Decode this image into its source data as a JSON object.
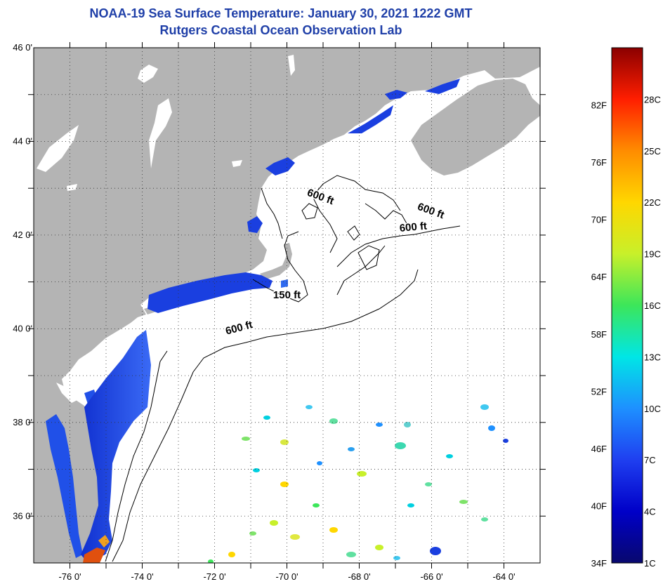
{
  "title": {
    "line1": "NOAA-19 Sea Surface Temperature:  January 30, 2021 1222 GMT",
    "line2": "Rutgers Coastal Ocean Observation Lab"
  },
  "map": {
    "lon_range": [
      -77,
      -63
    ],
    "lat_range": [
      35,
      46
    ],
    "lon_ticks": [
      {
        "value": -76,
        "label": "-76 0'"
      },
      {
        "value": -74,
        "label": "-74 0'"
      },
      {
        "value": -72,
        "label": "-72 0'"
      },
      {
        "value": -70,
        "label": "-70 0'"
      },
      {
        "value": -68,
        "label": "-68 0'"
      },
      {
        "value": -66,
        "label": "-66 0'"
      },
      {
        "value": -64,
        "label": "-64 0'"
      }
    ],
    "lat_ticks": [
      {
        "value": 46,
        "label": "46 0'"
      },
      {
        "value": 44,
        "label": "44 0'"
      },
      {
        "value": 42,
        "label": "42 0'"
      },
      {
        "value": 40,
        "label": "40 0'"
      },
      {
        "value": 38,
        "label": "38 0'"
      },
      {
        "value": 36,
        "label": "36 0'"
      }
    ],
    "contour_labels": [
      {
        "text": "600 ft",
        "lon": -69.1,
        "lat": 42.75
      },
      {
        "text": "600 ft",
        "lon": -66.05,
        "lat": 42.45
      },
      {
        "text": "600 ft",
        "lon": -66.5,
        "lat": 42.1
      },
      {
        "text": "150 ft",
        "lon": -70.0,
        "lat": 40.65
      },
      {
        "text": "600 ft",
        "lon": -71.3,
        "lat": 39.95
      }
    ],
    "colors": {
      "land": "#b4b4b4",
      "contour": "#000000",
      "cold_water": "#1a3fe0"
    }
  },
  "colorbar": {
    "range_f": [
      34,
      88
    ],
    "range_c": [
      1,
      31
    ],
    "fahrenheit": [
      "34F",
      "40F",
      "46F",
      "52F",
      "58F",
      "64F",
      "70F",
      "76F",
      "82F"
    ],
    "celsius": [
      "1C",
      "4C",
      "7C",
      "10C",
      "13C",
      "16C",
      "19C",
      "22C",
      "25C",
      "28C"
    ],
    "stops": [
      "#08086e",
      "#0000c8",
      "#1f3ff0",
      "#1e90ff",
      "#00e6e6",
      "#3ce65a",
      "#c8f02a",
      "#ffd700",
      "#ff8c00",
      "#ff1e00",
      "#8b0000"
    ]
  }
}
